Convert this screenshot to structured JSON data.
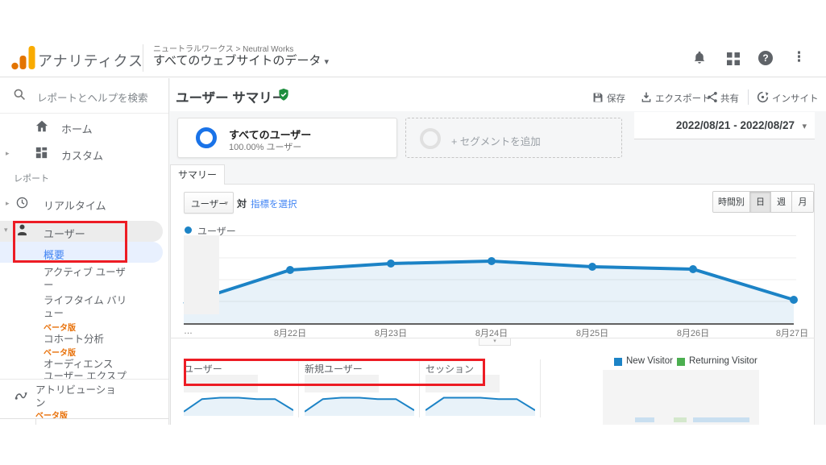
{
  "glyphs": {
    "caret_down": "▾",
    "caret_right": "▸",
    "kebab": "⋮",
    "question": "?",
    "ellipsis": "…"
  },
  "colors": {
    "logo_orange": "#e37400",
    "logo_amber": "#f9ab00",
    "accent_blue": "#4285f4",
    "segment_ring_blue": "#1a73e8",
    "chart_line": "#1c83c6",
    "new_visitor_blue": "#1c83c6",
    "returning_visitor_green": "#4caf50",
    "beta_orange": "#e8710a",
    "annotation_red": "#ed1c24",
    "badge_green": "#1e8e3e"
  },
  "header": {
    "app_title": "アナリティクス",
    "breadcrumb": {
      "account": "ニュートラルワークス",
      "separator": ">",
      "property": "Neutral Works"
    },
    "view_selector": "すべてのウェブサイトのデータ"
  },
  "sidebar": {
    "search_placeholder": "レポートとヘルプを検索",
    "home": "ホーム",
    "custom": "カスタム",
    "reports_section": "レポート",
    "realtime": "リアルタイム",
    "users": "ユーザー",
    "overview": "概要",
    "active_users": "アクティブ ユーザー",
    "lifetime_value": "ライフタイム バリュー",
    "cohort": "コホート分析",
    "audience": "オーディエンス",
    "user_explorer": "ユーザー エクスプ",
    "attribution": "アトリビューション",
    "beta_badge": "ベータ版"
  },
  "main": {
    "title": "ユーザー サマリー",
    "actions": {
      "save": "保存",
      "export": "エクスポート",
      "share": "共有",
      "insights": "インサイト"
    },
    "date_range": "2022/08/21 - 2022/08/27",
    "segments": {
      "all_users_name": "すべてのユーザー",
      "all_users_detail": "100.00% ユーザー",
      "add_segment": "+ セグメントを追加"
    },
    "tab": "サマリー",
    "controls": {
      "metric_selector": "ユーザー",
      "vs": "対",
      "choose_metric": "指標を選択",
      "granularity": [
        "時間別",
        "日",
        "週",
        "月"
      ],
      "selected_granularity": "日"
    },
    "chart_series_label": "ユーザー",
    "metric_cards": [
      {
        "label": "ユーザー"
      },
      {
        "label": "新規ユーザー"
      },
      {
        "label": "セッション"
      }
    ],
    "visitor_legend": [
      {
        "label": "New Visitor"
      },
      {
        "label": "Returning Visitor"
      }
    ]
  },
  "chart_data": {
    "type": "line",
    "categories": [
      "…",
      "8月22日",
      "8月23日",
      "8月24日",
      "8月25日",
      "8月26日",
      "8月27日"
    ],
    "series": [
      {
        "name": "ユーザー",
        "values": [
          27,
          67,
          75,
          78,
          71,
          68,
          30
        ]
      }
    ],
    "ylim": [
      0,
      110
    ],
    "y_axis_labels": "obscured",
    "grid": "horizontal",
    "legend_position": "top-left",
    "sparklines": [
      {
        "name": "ユーザー",
        "values": [
          3,
          12,
          13,
          13,
          12,
          12,
          4
        ]
      },
      {
        "name": "新規ユーザー",
        "values": [
          3,
          12,
          13,
          13,
          12,
          12,
          4
        ]
      },
      {
        "name": "セッション",
        "values": [
          4,
          13,
          13,
          13,
          12,
          12,
          4
        ]
      }
    ]
  }
}
